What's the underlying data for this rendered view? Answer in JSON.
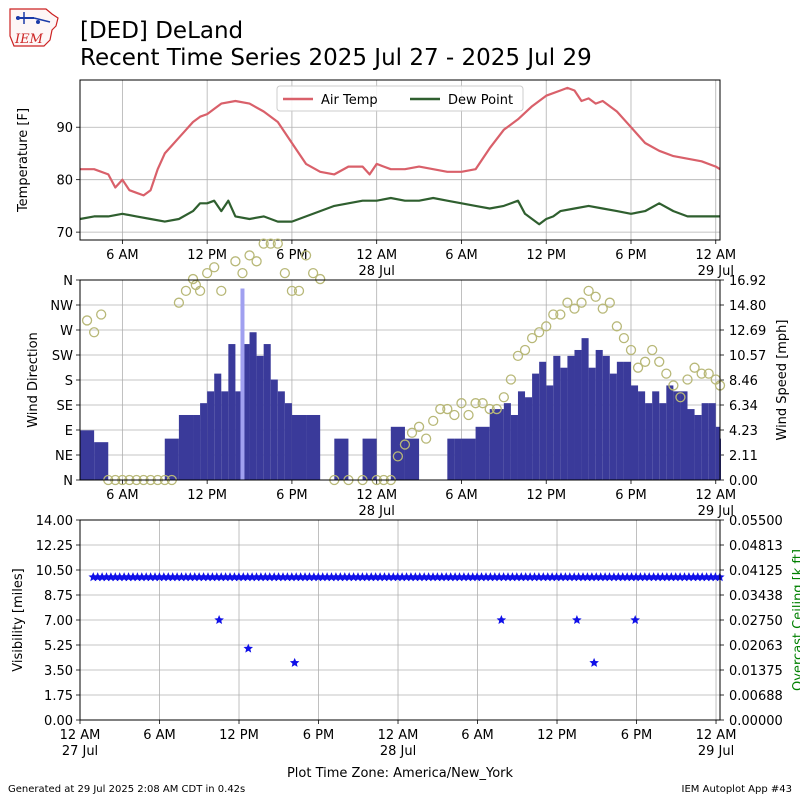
{
  "header": {
    "title_line1": "[DED] DeLand",
    "title_line2": "Recent Time Series 2025 Jul 27 - 2025 Jul 29",
    "logo_text": "IEM"
  },
  "footer": {
    "generated": "Generated at 29 Jul 2025 2:08 AM CDT in 0.42s",
    "app": "IEM Autoplot App #43"
  },
  "colors": {
    "air_temp": "#d9606a",
    "dew_point": "#2f5f2f",
    "wind_speed": "#3a3a9a",
    "wind_gust": "#a0a0f0",
    "wind_dir": "#b8b878",
    "visibility": "#1010e8",
    "ceiling_label": "#008000",
    "grid": "#b0b0b0"
  },
  "chart_data": [
    {
      "type": "line",
      "id": "temperature",
      "ylabel": "Temperature [F]",
      "ylim": [
        68.5,
        99
      ],
      "yticks": [
        70,
        80,
        90
      ],
      "xlim": [
        3,
        48.3
      ],
      "xticks": [
        {
          "h": 6,
          "label": "6 AM",
          "sub": ""
        },
        {
          "h": 12,
          "label": "12 PM",
          "sub": ""
        },
        {
          "h": 18,
          "label": "6 PM",
          "sub": ""
        },
        {
          "h": 24,
          "label": "12 AM",
          "sub": "28 Jul"
        },
        {
          "h": 30,
          "label": "6 AM",
          "sub": ""
        },
        {
          "h": 36,
          "label": "12 PM",
          "sub": ""
        },
        {
          "h": 42,
          "label": "6 PM",
          "sub": ""
        },
        {
          "h": 48,
          "label": "12 AM",
          "sub": "29 Jul"
        }
      ],
      "legend": "top-center",
      "series": [
        {
          "name": "Air Temp",
          "x": [
            3,
            4,
            5,
            5.5,
            6,
            6.5,
            7,
            7.5,
            8,
            8.5,
            9,
            9.5,
            10,
            10.5,
            11,
            11.5,
            12,
            12.5,
            13,
            14,
            15,
            16,
            17,
            18,
            19,
            20,
            21,
            22,
            23,
            23.5,
            24,
            24.5,
            25,
            26,
            27,
            28,
            29,
            29.5,
            30,
            31,
            32,
            33,
            34,
            35,
            36,
            37,
            37.5,
            38,
            38.5,
            39,
            39.5,
            40,
            41,
            42,
            43,
            44,
            45,
            46,
            47,
            48,
            48.3
          ],
          "values": [
            82,
            82,
            81,
            78.5,
            80,
            78,
            77.5,
            77,
            78,
            82,
            85,
            86.5,
            88,
            89.5,
            91,
            92,
            92.5,
            93.5,
            94.5,
            95,
            94.5,
            93,
            91,
            87,
            83,
            81.5,
            81,
            82.5,
            82.5,
            81,
            83,
            82.5,
            82,
            82,
            82.5,
            82,
            81.5,
            81.5,
            81.5,
            82,
            86,
            89.5,
            91.5,
            94,
            96,
            97,
            97.5,
            97,
            95,
            95.5,
            94.5,
            95,
            93,
            90,
            87,
            85.5,
            84.5,
            84,
            83.5,
            82.5,
            82
          ]
        },
        {
          "name": "Dew Point",
          "x": [
            3,
            4,
            5,
            6,
            7,
            8,
            9,
            10,
            11,
            11.5,
            12,
            12.5,
            13,
            13.5,
            14,
            15,
            16,
            17,
            18,
            19,
            20,
            21,
            22,
            23,
            24,
            25,
            26,
            27,
            28,
            29,
            30,
            31,
            32,
            33,
            34,
            34.5,
            35,
            35.5,
            36,
            36.5,
            37,
            38,
            39,
            40,
            41,
            42,
            43,
            44,
            45,
            46,
            47,
            48,
            48.3
          ],
          "values": [
            72.5,
            73,
            73,
            73.5,
            73,
            72.5,
            72,
            72.5,
            74,
            75.5,
            75.5,
            76,
            74,
            76,
            73,
            72.5,
            73,
            72,
            72,
            73,
            74,
            75,
            75.5,
            76,
            76,
            76.5,
            76,
            76,
            76.5,
            76,
            75.5,
            75,
            74.5,
            75,
            76,
            73.5,
            72.5,
            71.5,
            72.5,
            73,
            74,
            74.5,
            75,
            74.5,
            74,
            73.5,
            74,
            75.5,
            74,
            73,
            73,
            73,
            73
          ]
        }
      ]
    },
    {
      "type": "bar",
      "id": "wind",
      "ylabel": "Wind Direction",
      "ylabel_right": "Wind Speed [mph]",
      "direction_ticks": [
        "N",
        "NE",
        "E",
        "SE",
        "S",
        "SW",
        "W",
        "NW",
        "N"
      ],
      "speed_ylim": [
        0,
        16.92
      ],
      "speed_ticks": [
        "0.00",
        "2.11",
        "4.23",
        "6.34",
        "8.46",
        "10.57",
        "12.69",
        "14.80",
        "16.92"
      ],
      "xlim": [
        3,
        48.3
      ],
      "series": [
        {
          "name": "Wind Speed",
          "x": [
            3,
            4,
            5,
            6,
            7,
            8,
            9,
            10,
            11,
            11.5,
            12,
            12.5,
            13,
            13.5,
            14,
            14.5,
            15,
            15.5,
            16,
            16.5,
            17,
            17.5,
            18,
            19,
            20,
            21,
            22,
            23,
            24,
            25,
            26,
            27,
            28,
            29,
            29.5,
            30,
            31,
            32,
            33,
            33.5,
            34,
            34.5,
            35,
            35.5,
            36,
            36.5,
            37,
            37.5,
            38,
            38.5,
            39,
            39.5,
            40,
            40.5,
            41,
            41.5,
            42,
            42.5,
            43,
            43.5,
            44,
            44.5,
            45,
            45.5,
            46,
            46.5,
            47,
            47.5,
            48,
            48.3
          ],
          "values": [
            4.2,
            3.2,
            0,
            0,
            0,
            0,
            3.5,
            5.5,
            5.5,
            6.5,
            7.5,
            9,
            7.5,
            11.5,
            7.5,
            11.5,
            12.5,
            10.5,
            11.5,
            8.5,
            7.5,
            6.5,
            5.5,
            5.5,
            0,
            3.5,
            0,
            3.5,
            0,
            4.5,
            3.5,
            0,
            0,
            3.5,
            3.5,
            3.5,
            4.5,
            6,
            6.5,
            5.5,
            7.5,
            7,
            9,
            10,
            8,
            10.5,
            9.5,
            10.5,
            11,
            12,
            9.5,
            11,
            10.5,
            9,
            10,
            10,
            8,
            7.5,
            6.5,
            7.5,
            6.5,
            8,
            7.5,
            7.5,
            6,
            5.5,
            6.5,
            6.5,
            4.5,
            3.5
          ]
        },
        {
          "name": "Wind Gust",
          "x": [
            14.5
          ],
          "values": [
            16.2
          ]
        },
        {
          "name": "Wind Direction",
          "x": [
            3.5,
            4,
            4.5,
            5,
            5.5,
            6,
            6.5,
            7,
            7.5,
            8,
            8.5,
            9,
            9.5,
            10,
            10.5,
            11,
            11.2,
            11.5,
            12,
            12.5,
            13,
            14,
            14.5,
            15,
            15.5,
            16,
            16.5,
            17,
            17.5,
            18,
            18.5,
            19,
            19.5,
            20,
            21,
            22,
            23,
            24,
            24.5,
            25,
            25.5,
            26,
            26.5,
            27,
            27.5,
            28,
            28.5,
            29,
            29.5,
            30,
            30.5,
            31,
            31.5,
            32,
            32.5,
            33,
            33.5,
            34,
            34.5,
            35,
            35.5,
            36,
            36.5,
            37,
            37.5,
            38,
            38.5,
            39,
            39.5,
            40,
            40.5,
            41,
            41.5,
            42,
            42.5,
            43,
            43.5,
            44,
            44.5,
            45,
            45.5,
            46,
            46.5,
            47,
            47.5,
            48,
            48.3
          ],
          "values": [
            13.5,
            12.5,
            14,
            0,
            0,
            0,
            0,
            0,
            0,
            0,
            0,
            0,
            0,
            15,
            16,
            17,
            16.5,
            16,
            17.5,
            18,
            16,
            18.5,
            17.5,
            19,
            18.5,
            20,
            20,
            20,
            17.5,
            16,
            16,
            19,
            17.5,
            17,
            0,
            0,
            0,
            0,
            0,
            0,
            2,
            3,
            4,
            4.5,
            3.5,
            5,
            6,
            6,
            5.5,
            6.5,
            5.5,
            6.5,
            6.5,
            6,
            6,
            7,
            8.5,
            10.5,
            11,
            12,
            12.5,
            13,
            14,
            14,
            15,
            14.5,
            15,
            16,
            15.5,
            14.5,
            15,
            13,
            12,
            11,
            9.5,
            10,
            11,
            10,
            9,
            8,
            7,
            8.5,
            9.5,
            9,
            9,
            8.5,
            8
          ]
        }
      ]
    },
    {
      "type": "scatter",
      "id": "visibility",
      "ylabel": "Visibility [miles]",
      "ylabel_right": "Overcast Ceiling [k ft]",
      "xlabel": "Plot Time Zone: America/New_York",
      "ylim": [
        0,
        14
      ],
      "yticks": [
        "0.00",
        "1.75",
        "3.50",
        "5.25",
        "7.00",
        "8.75",
        "10.50",
        "12.25",
        "14.00"
      ],
      "ceiling_ylim": [
        0,
        0.055
      ],
      "ceiling_ticks": [
        "0.00000",
        "0.00688",
        "0.01375",
        "0.02063",
        "0.02750",
        "0.03438",
        "0.04125",
        "0.04813",
        "0.05500"
      ],
      "xlim": [
        0,
        48.3
      ],
      "xticks": [
        {
          "h": 0,
          "label": "12 AM",
          "sub": "27 Jul"
        },
        {
          "h": 6,
          "label": "6 AM",
          "sub": ""
        },
        {
          "h": 12,
          "label": "12 PM",
          "sub": ""
        },
        {
          "h": 18,
          "label": "6 PM",
          "sub": ""
        },
        {
          "h": 24,
          "label": "12 AM",
          "sub": "28 Jul"
        },
        {
          "h": 30,
          "label": "6 AM",
          "sub": ""
        },
        {
          "h": 36,
          "label": "12 PM",
          "sub": ""
        },
        {
          "h": 42,
          "label": "6 PM",
          "sub": ""
        },
        {
          "h": 48,
          "label": "12 AM",
          "sub": "29 Jul"
        }
      ],
      "constant_value": 10,
      "constant_range": [
        1,
        48.3,
        0.333
      ],
      "series": [
        {
          "name": "Visibility",
          "x": [
            10.5,
            12.7,
            16.2,
            31.8,
            37.5,
            38.8,
            41.9
          ],
          "values": [
            7,
            5,
            4,
            7,
            7,
            4,
            7
          ]
        }
      ]
    }
  ]
}
